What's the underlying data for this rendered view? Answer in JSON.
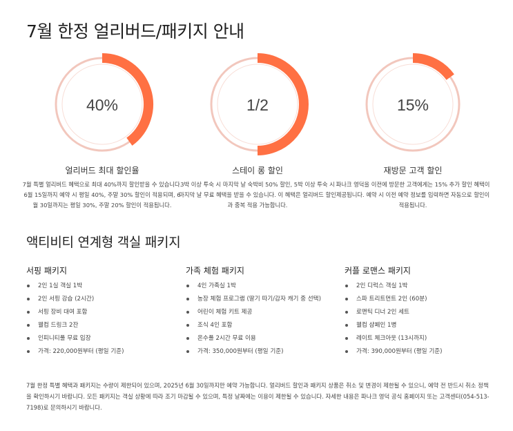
{
  "header": {
    "title": "7월 한정 얼리버드/패키지 안내"
  },
  "stats": [
    {
      "value_label": "40%",
      "fraction": 0.4,
      "title": "얼리버드 최대 할인율",
      "description": "7월 특별 얼리버드 혜택으로 최대 40%까지 할인받을 수 있습니다. 6월 15일까지 예약 시 평일 40%, 주말 30% 할인이 적용되며, 6월 30일까지는 평일 30%, 주말 20% 할인이 적용됩니다."
    },
    {
      "value_label": "1/2",
      "fraction": 0.5,
      "title": "스테이 롱 할인",
      "description": "3박 이상 투숙 시 마지막 날 숙박비 50% 할인, 5박 이상 투숙 시 마지막 날 무료 혜택을 받을 수 있습니다. 이 혜택은 얼리버드 할인과 중복 적용 가능합니다."
    },
    {
      "value_label": "15%",
      "fraction": 0.15,
      "title": "재방문 고객 할인",
      "description": "파나크 영덕을 이전에 방문한 고객에게는 15% 추가 할인 혜택이 제공됩니다. 예약 시 이전 예약 정보를 입력하면 자동으로 할인이 적용됩니다."
    }
  ],
  "packages_section": {
    "title": "액티비티 연계형 객실 패키지"
  },
  "packages": [
    {
      "title": "서핑 패키지",
      "items": [
        "2인 1실 객실 1박",
        "2인 서핑 강습 (2시간)",
        "서핑 장비 대여 포함",
        "웰컴 드링크 2잔",
        "인피니티풀 무료 입장",
        "가격: 220,000원부터 (평일 기준)"
      ]
    },
    {
      "title": "가족 체험 패키지",
      "items": [
        "4인 가족실 1박",
        "농장 체험 프로그램 (딸기 따기/감자 캐기 중 선택)",
        "어린이 체험 키트 제공",
        "조식 4인 포함",
        "온수풀 2시간 무료 이용",
        "가격: 350,000원부터 (평일 기준)"
      ]
    },
    {
      "title": "커플 로맨스 패키지",
      "items": [
        "2인 디럭스 객실 1박",
        "스파 트리트먼트 2인 (60분)",
        "로맨틱 디너 2인 세트",
        "웰컴 샴페인 1병",
        "레이트 체크아웃 (13시까지)",
        "가격: 390,000원부터 (평일 기준)"
      ]
    }
  ],
  "footer": {
    "notice": "7월 한정 특별 혜택과 패키지는 수량이 제한되어 있으며, 2025년 6월 30일까지만 예약 가능합니다. 얼리버드 할인과 패키지 상품은 취소 및 변경이 제한될 수 있으니, 예약 전 반드시 취소 정책을 확인하시기 바랍니다. 모든 패키지는 객실 상황에 따라 조기 마감될 수 있으며, 특정 날짜에는 이용이 제한될 수 있습니다. 자세한 내용은 파나크 영덕 공식 홈페이지 또는 고객센터(054-513-7198)로 문의하시기 바랍니다."
  },
  "colors": {
    "accent": "#ff7043",
    "ring_track": "#f2c7bd",
    "ring_inner": "#f8ddd6",
    "text_dark": "#1f1f1f",
    "text_body": "#444444"
  }
}
